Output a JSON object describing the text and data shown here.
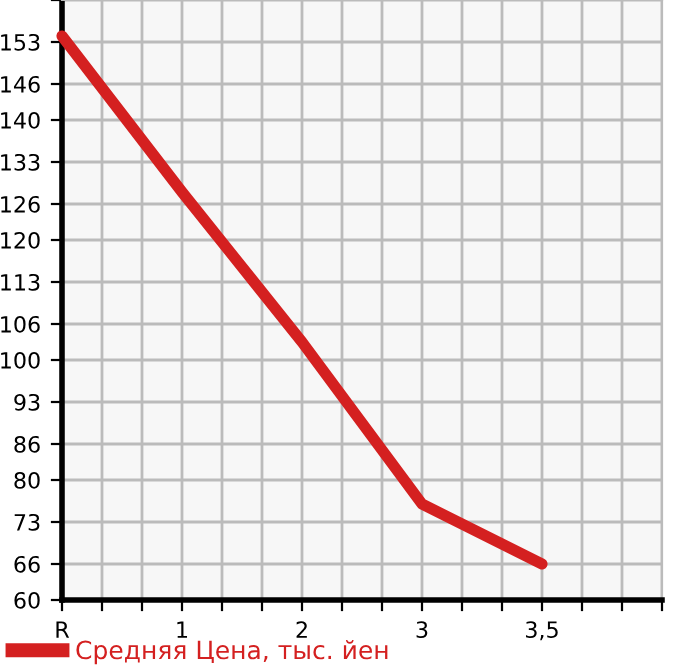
{
  "chart_data": {
    "type": "line",
    "categories": [
      "R",
      "1",
      "2",
      "3",
      "3,5",
      null
    ],
    "series": [
      {
        "name": "Средняя Цена, тыс. йен",
        "color": "#d42020",
        "values": [
          154,
          128,
          103,
          76,
          66,
          null
        ]
      }
    ],
    "ylim": [
      60,
      160
    ],
    "yticks": [
      60,
      66,
      73,
      80,
      86,
      93,
      100,
      106,
      113,
      120,
      126,
      133,
      140,
      146,
      153,
      {
        "value": 160,
        "label": null
      }
    ],
    "grid": true,
    "legend": "bottom left",
    "marker": "none",
    "line_style": "solid"
  }
}
